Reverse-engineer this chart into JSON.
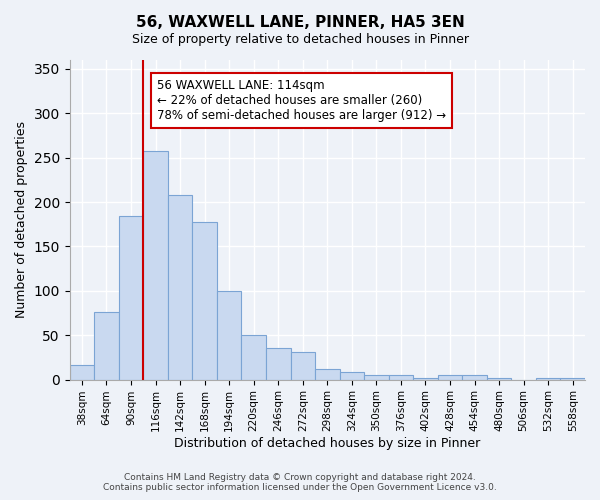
{
  "title": "56, WAXWELL LANE, PINNER, HA5 3EN",
  "subtitle": "Size of property relative to detached houses in Pinner",
  "xlabel": "Distribution of detached houses by size in Pinner",
  "ylabel": "Number of detached properties",
  "bin_labels": [
    "38sqm",
    "64sqm",
    "90sqm",
    "116sqm",
    "142sqm",
    "168sqm",
    "194sqm",
    "220sqm",
    "246sqm",
    "272sqm",
    "298sqm",
    "324sqm",
    "350sqm",
    "376sqm",
    "402sqm",
    "428sqm",
    "454sqm",
    "480sqm",
    "506sqm",
    "532sqm",
    "558sqm"
  ],
  "bar_values": [
    16,
    76,
    184,
    258,
    208,
    178,
    100,
    50,
    36,
    31,
    12,
    9,
    5,
    5,
    2,
    5,
    5,
    2,
    0,
    2,
    2
  ],
  "bar_color": "#c9d9f0",
  "bar_edge_color": "#7ba4d4",
  "vline_index": 3,
  "vline_color": "#cc0000",
  "ylim": [
    0,
    360
  ],
  "yticks": [
    0,
    50,
    100,
    150,
    200,
    250,
    300,
    350
  ],
  "annotation_title": "56 WAXWELL LANE: 114sqm",
  "annotation_line1": "← 22% of detached houses are smaller (260)",
  "annotation_line2": "78% of semi-detached houses are larger (912) →",
  "annotation_box_color": "#ffffff",
  "annotation_box_edge": "#cc0000",
  "footer_line1": "Contains HM Land Registry data © Crown copyright and database right 2024.",
  "footer_line2": "Contains public sector information licensed under the Open Government Licence v3.0.",
  "bg_color": "#eef2f8",
  "plot_bg_color": "#eef2f8"
}
